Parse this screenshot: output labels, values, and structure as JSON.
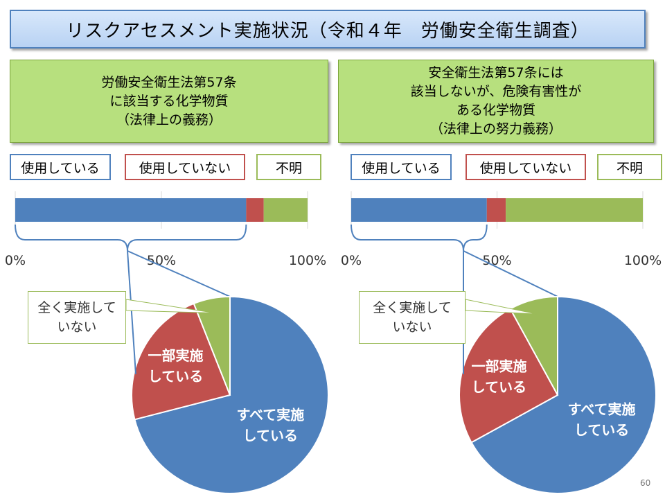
{
  "title": "リスクアセスメント実施状況（令和４年　労働安全衛生調査）",
  "page_number": "60",
  "colors": {
    "used": "#4f81bd",
    "not_used": "#c0504d",
    "unknown": "#9bbb59",
    "bracket": "#4f81bd"
  },
  "chart_data": [
    {
      "panel": "left",
      "category_lines": [
        "労働安全衛生法第57条",
        "に該当する化学物質",
        "（法律上の義務）"
      ],
      "legend": [
        "使用している",
        "使用していない",
        "不明"
      ],
      "bar": {
        "type": "bar",
        "stacked": true,
        "orientation": "horizontal",
        "values": [
          79,
          6,
          15
        ],
        "xlim": [
          0,
          100
        ],
        "ticks": [
          "0%",
          "50%",
          "100%"
        ]
      },
      "pie": {
        "type": "pie",
        "labels": [
          "すべて実施している",
          "一部実施している",
          "全く実施していない"
        ],
        "label_lines": [
          [
            "すべて実施",
            "している"
          ],
          [
            "一部実施",
            "している"
          ],
          [
            "全く実施して",
            "いない"
          ]
        ],
        "values": [
          71,
          23,
          6
        ]
      }
    },
    {
      "panel": "right",
      "category_lines": [
        "安全衛生法第57条には",
        "該当しないが、危険有害性が",
        "ある化学物質",
        "（法律上の努力義務）"
      ],
      "legend": [
        "使用している",
        "使用していない",
        "不明"
      ],
      "bar": {
        "type": "bar",
        "stacked": true,
        "orientation": "horizontal",
        "values": [
          46.5,
          6.5,
          47
        ],
        "xlim": [
          0,
          100
        ],
        "ticks": [
          "0%",
          "50%",
          "100%"
        ]
      },
      "pie": {
        "type": "pie",
        "labels": [
          "すべて実施している",
          "一部実施している",
          "全く実施していない"
        ],
        "label_lines": [
          [
            "すべて実施",
            "している"
          ],
          [
            "一部実施",
            "している"
          ],
          [
            "全く実施して",
            "いない"
          ]
        ],
        "values": [
          67,
          25,
          8
        ]
      }
    }
  ]
}
